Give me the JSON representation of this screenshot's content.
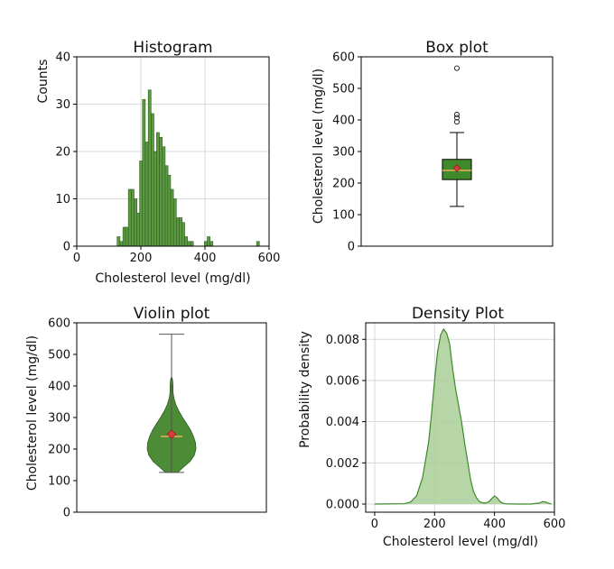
{
  "colors": {
    "bar_fill": "#5b9a41",
    "bar_edge": "#2f5d22",
    "box_fill": "#3f8a2a",
    "median": "#e8b25a",
    "mean_marker": "#d83a3a",
    "violin_fill": "#4d8c37",
    "density_fill": "#a9cf98",
    "density_line": "#3d8a2b"
  },
  "chart_data": [
    {
      "type": "histogram",
      "title": "Histogram",
      "xlabel": "Cholesterol level (mg/dl)",
      "ylabel": "Counts",
      "xlim": [
        0,
        600
      ],
      "ylim": [
        0,
        40
      ],
      "xticks": [
        0,
        200,
        400,
        600
      ],
      "yticks": [
        0,
        10,
        20,
        30,
        40
      ],
      "grid": true,
      "bin_width": 8.8,
      "bins": [
        {
          "x": 126,
          "count": 2
        },
        {
          "x": 135,
          "count": 1
        },
        {
          "x": 144,
          "count": 4
        },
        {
          "x": 152,
          "count": 4
        },
        {
          "x": 161,
          "count": 12
        },
        {
          "x": 170,
          "count": 12
        },
        {
          "x": 179,
          "count": 10
        },
        {
          "x": 188,
          "count": 7
        },
        {
          "x": 196,
          "count": 18
        },
        {
          "x": 205,
          "count": 31
        },
        {
          "x": 214,
          "count": 22
        },
        {
          "x": 223,
          "count": 33
        },
        {
          "x": 232,
          "count": 28
        },
        {
          "x": 240,
          "count": 20
        },
        {
          "x": 249,
          "count": 24
        },
        {
          "x": 258,
          "count": 23
        },
        {
          "x": 267,
          "count": 21
        },
        {
          "x": 276,
          "count": 17
        },
        {
          "x": 284,
          "count": 15
        },
        {
          "x": 293,
          "count": 12
        },
        {
          "x": 302,
          "count": 10
        },
        {
          "x": 311,
          "count": 6
        },
        {
          "x": 320,
          "count": 6
        },
        {
          "x": 328,
          "count": 5
        },
        {
          "x": 337,
          "count": 2
        },
        {
          "x": 346,
          "count": 1
        },
        {
          "x": 355,
          "count": 1
        },
        {
          "x": 398,
          "count": 1
        },
        {
          "x": 407,
          "count": 2
        },
        {
          "x": 416,
          "count": 1
        },
        {
          "x": 561,
          "count": 1
        }
      ]
    },
    {
      "type": "box",
      "title": "Box plot",
      "ylabel": "Cholesterol level (mg/dl)",
      "ylim": [
        0,
        600
      ],
      "yticks": [
        0,
        100,
        200,
        300,
        400,
        500,
        600
      ],
      "grid": false,
      "whisker_low": 126,
      "q1": 211,
      "median": 240,
      "q3": 275,
      "whisker_high": 360,
      "mean": 247,
      "outliers": [
        394,
        407,
        417,
        564
      ]
    },
    {
      "type": "violin",
      "title": "Violin plot",
      "ylabel": "Cholesterol level (mg/dl)",
      "ylim": [
        0,
        600
      ],
      "yticks": [
        0,
        100,
        200,
        300,
        400,
        500,
        600
      ],
      "grid": false,
      "min": 126,
      "max": 564,
      "median": 240,
      "mean": 247,
      "profile": [
        {
          "y": 126,
          "w": 0.25
        },
        {
          "y": 140,
          "w": 0.45
        },
        {
          "y": 160,
          "w": 0.75
        },
        {
          "y": 180,
          "w": 0.93
        },
        {
          "y": 200,
          "w": 1.0
        },
        {
          "y": 220,
          "w": 0.98
        },
        {
          "y": 240,
          "w": 0.9
        },
        {
          "y": 260,
          "w": 0.78
        },
        {
          "y": 280,
          "w": 0.62
        },
        {
          "y": 300,
          "w": 0.45
        },
        {
          "y": 320,
          "w": 0.3
        },
        {
          "y": 340,
          "w": 0.18
        },
        {
          "y": 360,
          "w": 0.1
        },
        {
          "y": 380,
          "w": 0.06
        },
        {
          "y": 400,
          "w": 0.06
        },
        {
          "y": 420,
          "w": 0.04
        },
        {
          "y": 430,
          "w": 0.0
        }
      ]
    },
    {
      "type": "area",
      "title": "Density Plot",
      "xlabel": "Cholesterol level (mg/dl)",
      "ylabel": "Probability density",
      "xlim": [
        -30,
        600
      ],
      "ylim": [
        0,
        0.0088
      ],
      "xticks": [
        0,
        200,
        400,
        600
      ],
      "yticks": [
        0.0,
        0.002,
        0.004,
        0.006,
        0.008
      ],
      "ytick_labels": [
        "0.000",
        "0.002",
        "0.004",
        "0.006",
        "0.008"
      ],
      "grid": true,
      "x": [
        0,
        100,
        120,
        140,
        160,
        180,
        190,
        200,
        210,
        220,
        230,
        240,
        250,
        260,
        270,
        280,
        290,
        300,
        310,
        320,
        330,
        340,
        350,
        360,
        370,
        380,
        390,
        400,
        410,
        420,
        430,
        440,
        480,
        520,
        550,
        560,
        570,
        580,
        590
      ],
      "y": [
        0,
        2e-05,
        0.0001,
        0.0004,
        0.0013,
        0.003,
        0.0044,
        0.006,
        0.0074,
        0.0082,
        0.0085,
        0.0083,
        0.0078,
        0.0066,
        0.0056,
        0.0048,
        0.004,
        0.003,
        0.0021,
        0.0012,
        0.0006,
        0.0003,
        0.00012,
        6e-05,
        5e-05,
        0.0001,
        0.00025,
        0.0004,
        0.00028,
        0.0001,
        3e-05,
        1e-05,
        0,
        0,
        5e-05,
        0.00012,
        0.0001,
        4e-05,
        0
      ]
    }
  ]
}
